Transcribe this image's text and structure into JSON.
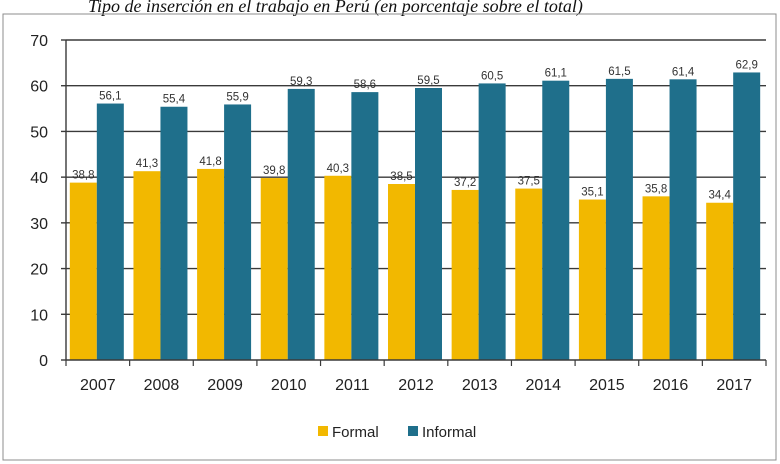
{
  "caption": "Tipo de inserción en el trabajo en Perú (en porcentaje sobre el total)",
  "chart_data": {
    "type": "bar",
    "categories": [
      "2007",
      "2008",
      "2009",
      "2010",
      "2011",
      "2012",
      "2013",
      "2014",
      "2015",
      "2016",
      "2017"
    ],
    "series": [
      {
        "name": "Formal",
        "color": "#f2b800",
        "values": [
          38.8,
          41.3,
          41.8,
          39.8,
          40.3,
          38.5,
          37.2,
          37.5,
          35.1,
          35.8,
          34.4
        ],
        "labels": [
          "38,8",
          "41,3",
          "41,8",
          "39,8",
          "40,3",
          "38,5",
          "37,2",
          "37,5",
          "35,1",
          "35,8",
          "34,4"
        ]
      },
      {
        "name": "Informal",
        "color": "#1f6f8b",
        "values": [
          56.1,
          55.4,
          55.9,
          59.3,
          58.6,
          59.5,
          60.5,
          61.1,
          61.5,
          61.4,
          62.9
        ],
        "labels": [
          "56,1",
          "55,4",
          "55,9",
          "59,3",
          "58,6",
          "59,5",
          "60,5",
          "61,1",
          "61,5",
          "61,4",
          "62,9"
        ]
      }
    ],
    "yticks": [
      "0",
      "10",
      "20",
      "30",
      "40",
      "50",
      "60",
      "70"
    ],
    "ylim": [
      0,
      70
    ],
    "grid": true,
    "legend": "bottom"
  }
}
